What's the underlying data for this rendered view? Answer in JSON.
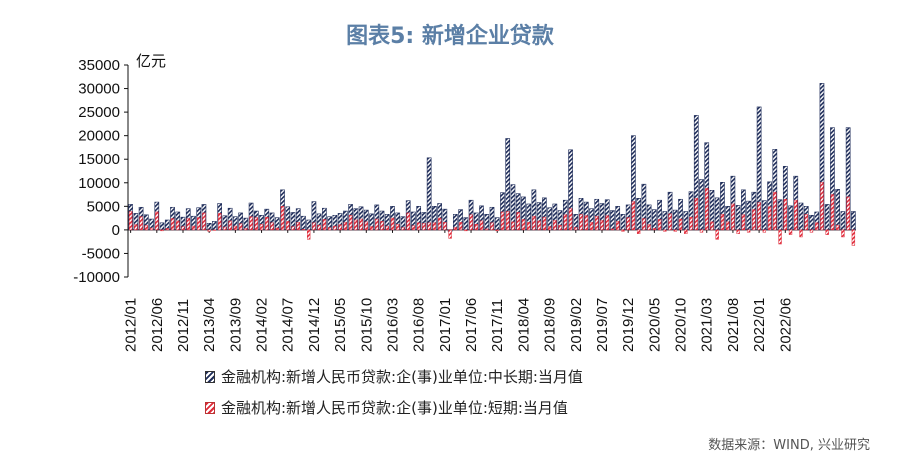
{
  "title": "图表5: 新增企业贷款",
  "unit": "亿元",
  "source": "数据来源：WIND, 兴业研究",
  "chart_data": {
    "type": "bar",
    "ylim": [
      -10000,
      35000
    ],
    "yticks": [
      35000,
      30000,
      25000,
      20000,
      15000,
      10000,
      5000,
      0,
      -5000,
      -10000
    ],
    "xtick_labels": [
      "2012/01",
      "2012/06",
      "2012/11",
      "2013/04",
      "2013/09",
      "2014/02",
      "2014/07",
      "2014/12",
      "2015/05",
      "2015/10",
      "2016/03",
      "2016/08",
      "2017/01",
      "2017/06",
      "2017/11",
      "2018/04",
      "2018/09",
      "2019/02",
      "2019/07",
      "2019/12",
      "2020/05",
      "2020/10",
      "2021/03",
      "2021/08",
      "2022/01",
      "2022/06"
    ],
    "legend_placement": "bottom",
    "series": [
      {
        "name": "金融机构:新增人民币贷款:企(事)业单位:中长期:当月值",
        "color": "#1f2d5a",
        "values": [
          5400,
          3500,
          4800,
          3200,
          2300,
          5900,
          1500,
          2100,
          4800,
          3800,
          2700,
          4500,
          2900,
          4700,
          5400,
          1400,
          1800,
          5600,
          3000,
          4600,
          2800,
          3600,
          2500,
          5700,
          4000,
          3100,
          4400,
          3600,
          2600,
          8500,
          4900,
          3700,
          4500,
          2900,
          2100,
          6000,
          3400,
          4600,
          2800,
          3100,
          3500,
          4000,
          5400,
          4500,
          4900,
          4200,
          3400,
          5300,
          4000,
          3300,
          5000,
          3600,
          2800,
          6200,
          3800,
          5000,
          3700,
          15300,
          5000,
          5600,
          4400,
          -300,
          3300,
          4300,
          2600,
          6300,
          3600,
          5100,
          3300,
          4800,
          2600,
          7900,
          19400,
          9600,
          7700,
          7000,
          5500,
          8500,
          5800,
          6800,
          4700,
          5500,
          4100,
          6300,
          17000,
          3300,
          6700,
          5900,
          4500,
          6500,
          5600,
          6400,
          4100,
          5000,
          3300,
          5300,
          20000,
          6700,
          9700,
          5300,
          4300,
          6300,
          3900,
          8000,
          4200,
          6500,
          3900,
          8100,
          24300,
          10700,
          18500,
          8400,
          6800,
          10100,
          5000,
          11400,
          5200,
          8500,
          6100,
          8000,
          26100,
          6200,
          10200,
          17100,
          6400,
          13500,
          5100,
          11400,
          5700,
          5000,
          3100,
          3800,
          31100,
          5400,
          21700,
          8600,
          3900,
          21700,
          3900
        ],
        "short_values": [
          3900,
          1100,
          2800,
          1000,
          400,
          3800,
          -200,
          300,
          2400,
          1900,
          700,
          2400,
          800,
          2600,
          3600,
          -300,
          -100,
          3500,
          600,
          1900,
          800,
          1300,
          300,
          2800,
          2600,
          1200,
          2700,
          1500,
          400,
          5000,
          1800,
          700,
          1600,
          100,
          -2000,
          1500,
          1000,
          2200,
          500,
          800,
          1100,
          1600,
          3100,
          2100,
          2300,
          1700,
          700,
          2300,
          1800,
          800,
          2500,
          1200,
          500,
          3600,
          900,
          1500,
          1400,
          1500,
          1500,
          2500,
          1600,
          -1800,
          500,
          1600,
          -200,
          3200,
          1200,
          1900,
          200,
          1500,
          -200,
          3800,
          3900,
          1700,
          3700,
          2200,
          1600,
          2900,
          1900,
          2700,
          700,
          2000,
          1000,
          3200,
          4500,
          500,
          3300,
          3000,
          1600,
          2900,
          2000,
          3000,
          200,
          1800,
          -300,
          2600,
          6000,
          -800,
          2400,
          1100,
          300,
          2200,
          -300,
          3400,
          -300,
          2300,
          -800,
          2700,
          6700,
          -500,
          8800,
          1700,
          -2000,
          3300,
          1700,
          5500,
          -800,
          3200,
          -500,
          4300,
          5800,
          -500,
          4900,
          8000,
          -3000,
          6500,
          -1000,
          6300,
          -1500,
          3300,
          -500,
          1500,
          10100,
          -1000,
          7500,
          1000,
          -1500,
          7000,
          -3300
        ]
      }
    ],
    "short_series_name": "金融机构:新增人民币贷款:企(事)业单位:短期:当月值",
    "short_series_color": "#e02b3a"
  },
  "legend": [
    {
      "label": "金融机构:新增人民币贷款:企(事)业单位:中长期:当月值"
    },
    {
      "label": "金融机构:新增人民币贷款:企(事)业单位:短期:当月值"
    }
  ]
}
